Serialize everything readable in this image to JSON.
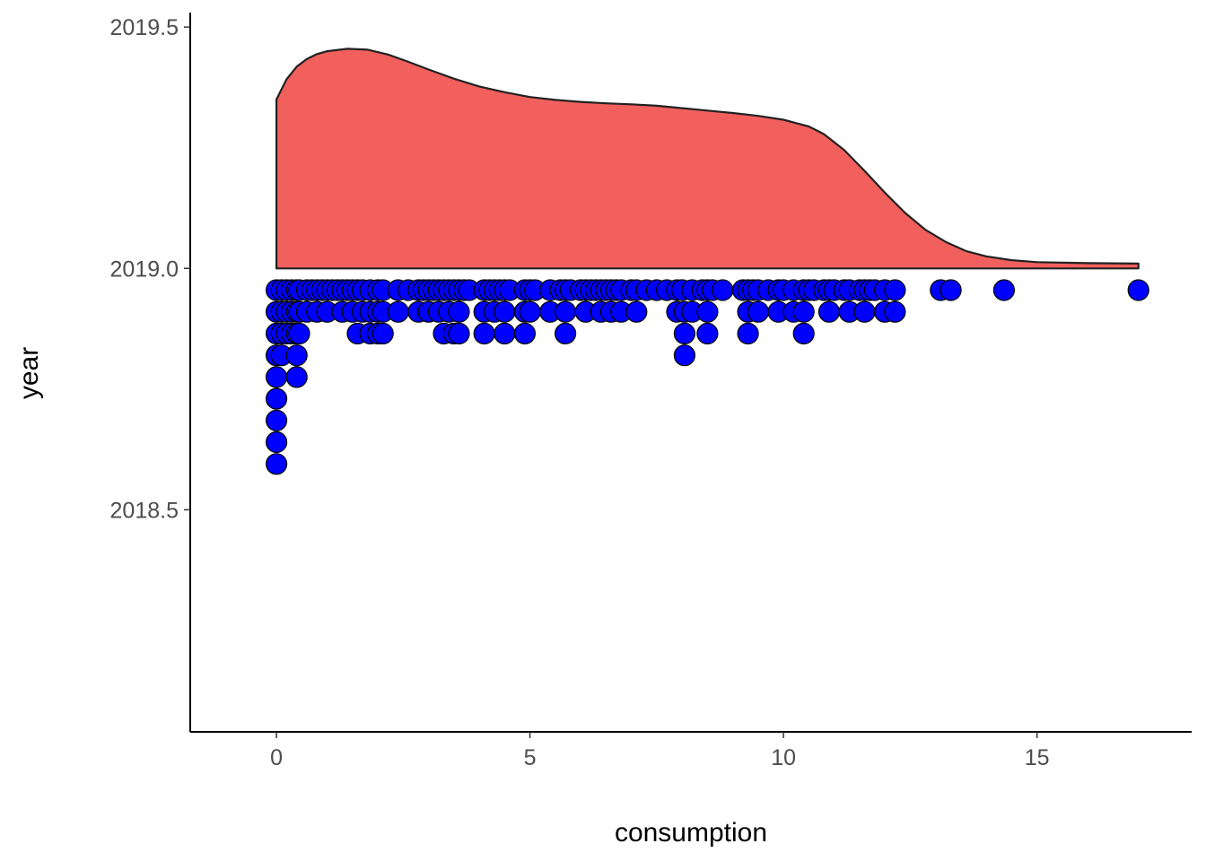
{
  "chart_data": {
    "type": "raincloud",
    "title": "",
    "xlabel": "consumption",
    "ylabel": "year",
    "xlim": [
      -1.7,
      18.05
    ],
    "ylim": [
      2018.04,
      2019.53
    ],
    "x_ticks": [
      0,
      5,
      10,
      15
    ],
    "x_tick_labels": [
      "0",
      "5",
      "10",
      "15"
    ],
    "y_ticks": [
      2018.5,
      2019.0,
      2019.5
    ],
    "y_tick_labels": [
      "2018.5",
      "2019.0",
      "2019.5"
    ],
    "grid": false,
    "legend": "none",
    "density": {
      "baseline": 2019.0,
      "fill_color": "#F2605D",
      "outline_color": "#222222",
      "points": [
        [
          0,
          2019.35
        ],
        [
          0.2,
          2019.392
        ],
        [
          0.4,
          2019.418
        ],
        [
          0.6,
          2019.434
        ],
        [
          0.8,
          2019.444
        ],
        [
          1.0,
          2019.45
        ],
        [
          1.4,
          2019.455
        ],
        [
          1.8,
          2019.453
        ],
        [
          2.2,
          2019.443
        ],
        [
          2.6,
          2019.428
        ],
        [
          3.0,
          2019.412
        ],
        [
          3.5,
          2019.393
        ],
        [
          4.0,
          2019.377
        ],
        [
          4.5,
          2019.365
        ],
        [
          5.0,
          2019.355
        ],
        [
          5.5,
          2019.349
        ],
        [
          6.0,
          2019.345
        ],
        [
          6.5,
          2019.342
        ],
        [
          7.0,
          2019.34
        ],
        [
          7.5,
          2019.337
        ],
        [
          8.0,
          2019.332
        ],
        [
          8.5,
          2019.327
        ],
        [
          9.0,
          2019.322
        ],
        [
          9.5,
          2019.316
        ],
        [
          10.0,
          2019.308
        ],
        [
          10.5,
          2019.294
        ],
        [
          10.8,
          2019.278
        ],
        [
          11.2,
          2019.245
        ],
        [
          11.6,
          2019.202
        ],
        [
          12.0,
          2019.157
        ],
        [
          12.4,
          2019.115
        ],
        [
          12.8,
          2019.08
        ],
        [
          13.2,
          2019.055
        ],
        [
          13.6,
          2019.036
        ],
        [
          14.0,
          2019.025
        ],
        [
          14.5,
          2019.017
        ],
        [
          15.0,
          2019.013
        ],
        [
          16.0,
          2019.011
        ],
        [
          17.0,
          2019.01
        ]
      ]
    },
    "dots": {
      "fill_color": "#0000FF",
      "outline_color": "#000000",
      "points": [
        [
          0,
          2018.955
        ],
        [
          0,
          2018.91
        ],
        [
          0,
          2018.865
        ],
        [
          0,
          2018.82
        ],
        [
          0,
          2018.775
        ],
        [
          0,
          2018.73
        ],
        [
          0,
          2018.685
        ],
        [
          0,
          2018.64
        ],
        [
          0,
          2018.595
        ],
        [
          0.1,
          2018.955
        ],
        [
          0.1,
          2018.91
        ],
        [
          0.1,
          2018.865
        ],
        [
          0.1,
          2018.82
        ],
        [
          0.2,
          2018.955
        ],
        [
          0.2,
          2018.91
        ],
        [
          0.2,
          2018.865
        ],
        [
          0.3,
          2018.955
        ],
        [
          0.3,
          2018.91
        ],
        [
          0.3,
          2018.865
        ],
        [
          0.4,
          2018.955
        ],
        [
          0.4,
          2018.91
        ],
        [
          0.4,
          2018.865
        ],
        [
          0.4,
          2018.82
        ],
        [
          0.4,
          2018.775
        ],
        [
          0.45,
          2018.955
        ],
        [
          0.45,
          2018.91
        ],
        [
          0.45,
          2018.865
        ],
        [
          0.6,
          2018.955
        ],
        [
          0.6,
          2018.91
        ],
        [
          0.7,
          2018.955
        ],
        [
          0.8,
          2018.955
        ],
        [
          0.8,
          2018.91
        ],
        [
          0.9,
          2018.955
        ],
        [
          1.0,
          2018.955
        ],
        [
          1.0,
          2018.91
        ],
        [
          1.1,
          2018.955
        ],
        [
          1.2,
          2018.955
        ],
        [
          1.3,
          2018.955
        ],
        [
          1.3,
          2018.91
        ],
        [
          1.4,
          2018.955
        ],
        [
          1.5,
          2018.955
        ],
        [
          1.5,
          2018.91
        ],
        [
          1.6,
          2018.955
        ],
        [
          1.6,
          2018.865
        ],
        [
          1.7,
          2018.955
        ],
        [
          1.7,
          2018.91
        ],
        [
          1.85,
          2018.955
        ],
        [
          1.85,
          2018.91
        ],
        [
          1.85,
          2018.865
        ],
        [
          2.0,
          2018.955
        ],
        [
          2.0,
          2018.91
        ],
        [
          2.0,
          2018.865
        ],
        [
          2.1,
          2018.955
        ],
        [
          2.1,
          2018.91
        ],
        [
          2.1,
          2018.865
        ],
        [
          2.4,
          2018.955
        ],
        [
          2.4,
          2018.91
        ],
        [
          2.6,
          2018.955
        ],
        [
          2.8,
          2018.955
        ],
        [
          2.8,
          2018.91
        ],
        [
          2.9,
          2018.955
        ],
        [
          3.0,
          2018.955
        ],
        [
          3.0,
          2018.91
        ],
        [
          3.1,
          2018.955
        ],
        [
          3.2,
          2018.955
        ],
        [
          3.2,
          2018.91
        ],
        [
          3.3,
          2018.955
        ],
        [
          3.3,
          2018.865
        ],
        [
          3.4,
          2018.955
        ],
        [
          3.4,
          2018.91
        ],
        [
          3.5,
          2018.955
        ],
        [
          3.5,
          2018.865
        ],
        [
          3.6,
          2018.955
        ],
        [
          3.6,
          2018.91
        ],
        [
          3.6,
          2018.865
        ],
        [
          3.7,
          2018.955
        ],
        [
          3.8,
          2018.955
        ],
        [
          4.1,
          2018.955
        ],
        [
          4.1,
          2018.91
        ],
        [
          4.1,
          2018.865
        ],
        [
          4.2,
          2018.955
        ],
        [
          4.3,
          2018.955
        ],
        [
          4.3,
          2018.91
        ],
        [
          4.4,
          2018.955
        ],
        [
          4.5,
          2018.955
        ],
        [
          4.5,
          2018.91
        ],
        [
          4.5,
          2018.865
        ],
        [
          4.6,
          2018.955
        ],
        [
          4.9,
          2018.955
        ],
        [
          4.9,
          2018.91
        ],
        [
          4.9,
          2018.865
        ],
        [
          5.0,
          2018.955
        ],
        [
          5.0,
          2018.91
        ],
        [
          5.1,
          2018.955
        ],
        [
          5.4,
          2018.955
        ],
        [
          5.4,
          2018.91
        ],
        [
          5.6,
          2018.955
        ],
        [
          5.7,
          2018.955
        ],
        [
          5.7,
          2018.91
        ],
        [
          5.7,
          2018.865
        ],
        [
          5.8,
          2018.955
        ],
        [
          6.0,
          2018.955
        ],
        [
          6.1,
          2018.955
        ],
        [
          6.1,
          2018.91
        ],
        [
          6.2,
          2018.955
        ],
        [
          6.3,
          2018.955
        ],
        [
          6.4,
          2018.955
        ],
        [
          6.4,
          2018.91
        ],
        [
          6.5,
          2018.955
        ],
        [
          6.6,
          2018.955
        ],
        [
          6.6,
          2018.91
        ],
        [
          6.7,
          2018.955
        ],
        [
          6.8,
          2018.955
        ],
        [
          6.8,
          2018.91
        ],
        [
          7.0,
          2018.955
        ],
        [
          7.1,
          2018.955
        ],
        [
          7.1,
          2018.91
        ],
        [
          7.3,
          2018.955
        ],
        [
          7.5,
          2018.955
        ],
        [
          7.7,
          2018.955
        ],
        [
          7.9,
          2018.955
        ],
        [
          7.9,
          2018.91
        ],
        [
          8.0,
          2018.955
        ],
        [
          8.05,
          2018.91
        ],
        [
          8.05,
          2018.865
        ],
        [
          8.05,
          2018.82
        ],
        [
          8.2,
          2018.955
        ],
        [
          8.2,
          2018.91
        ],
        [
          8.4,
          2018.955
        ],
        [
          8.5,
          2018.955
        ],
        [
          8.5,
          2018.91
        ],
        [
          8.5,
          2018.865
        ],
        [
          8.6,
          2018.955
        ],
        [
          8.8,
          2018.955
        ],
        [
          9.2,
          2018.955
        ],
        [
          9.3,
          2018.955
        ],
        [
          9.3,
          2018.91
        ],
        [
          9.3,
          2018.865
        ],
        [
          9.4,
          2018.955
        ],
        [
          9.5,
          2018.955
        ],
        [
          9.5,
          2018.91
        ],
        [
          9.7,
          2018.955
        ],
        [
          9.9,
          2018.955
        ],
        [
          9.9,
          2018.91
        ],
        [
          10.0,
          2018.955
        ],
        [
          10.2,
          2018.955
        ],
        [
          10.2,
          2018.91
        ],
        [
          10.4,
          2018.955
        ],
        [
          10.4,
          2018.91
        ],
        [
          10.4,
          2018.865
        ],
        [
          10.5,
          2018.955
        ],
        [
          10.6,
          2018.955
        ],
        [
          10.8,
          2018.955
        ],
        [
          10.9,
          2018.955
        ],
        [
          10.9,
          2018.91
        ],
        [
          11.0,
          2018.955
        ],
        [
          11.2,
          2018.955
        ],
        [
          11.3,
          2018.955
        ],
        [
          11.3,
          2018.91
        ],
        [
          11.5,
          2018.955
        ],
        [
          11.6,
          2018.955
        ],
        [
          11.6,
          2018.91
        ],
        [
          11.7,
          2018.955
        ],
        [
          11.8,
          2018.955
        ],
        [
          12.0,
          2018.955
        ],
        [
          12.0,
          2018.91
        ],
        [
          12.2,
          2018.955
        ],
        [
          12.2,
          2018.91
        ],
        [
          13.1,
          2018.955
        ],
        [
          13.3,
          2018.955
        ],
        [
          14.35,
          2018.955
        ],
        [
          17.0,
          2018.955
        ]
      ]
    }
  }
}
